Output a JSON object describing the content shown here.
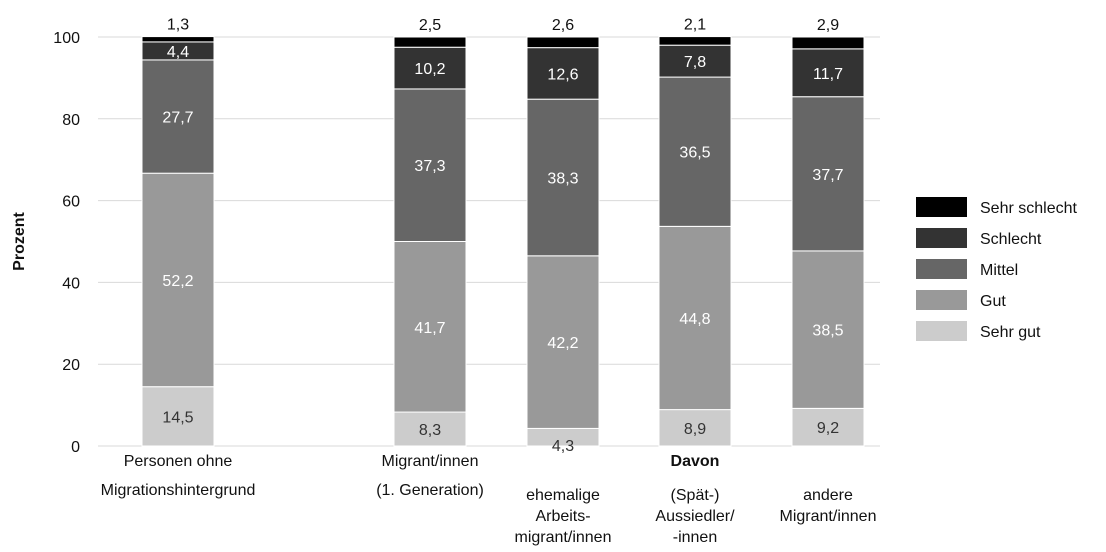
{
  "chart_data": {
    "type": "bar",
    "stacked": true,
    "ylabel": "Prozent",
    "ylim": [
      0,
      100
    ],
    "yticks": [
      0,
      20,
      40,
      60,
      80,
      100
    ],
    "grid": true,
    "legend_position": "right",
    "davon_label": "Davon",
    "categories": [
      {
        "lines": [
          "Personen ohne",
          "Migrationshintergrund"
        ]
      },
      {
        "lines": [
          "Migrant/innen",
          "(1. Generation)"
        ]
      },
      {
        "lines": [
          "ehemalige",
          "Arbeits-",
          "migrant/innen"
        ]
      },
      {
        "lines": [
          "(Spät-)",
          "Aussiedler/",
          "-innen"
        ]
      },
      {
        "lines": [
          "andere",
          "Migrant/innen"
        ]
      }
    ],
    "series": [
      {
        "name": "Sehr gut",
        "color": "#cccccc",
        "text_color": "#333333",
        "values": [
          14.5,
          8.3,
          4.3,
          8.9,
          9.2
        ],
        "labels": [
          "14,5",
          "8,3",
          "4,3",
          "8,9",
          "9,2"
        ]
      },
      {
        "name": "Gut",
        "color": "#999999",
        "text_color": "#ffffff",
        "values": [
          52.2,
          41.7,
          42.2,
          44.8,
          38.5
        ],
        "labels": [
          "52,2",
          "41,7",
          "42,2",
          "44,8",
          "38,5"
        ]
      },
      {
        "name": "Mittel",
        "color": "#666666",
        "text_color": "#ffffff",
        "values": [
          27.7,
          37.3,
          38.3,
          36.5,
          37.7
        ],
        "labels": [
          "27,7",
          "37,3",
          "38,3",
          "36,5",
          "37,7"
        ]
      },
      {
        "name": "Schlecht",
        "color": "#333333",
        "text_color": "#ffffff",
        "values": [
          4.4,
          10.2,
          12.6,
          7.8,
          11.7
        ],
        "labels": [
          "4,4",
          "10,2",
          "12,6",
          "7,8",
          "11,7"
        ]
      },
      {
        "name": "Sehr schlecht",
        "color": "#000000",
        "text_color": "#111111",
        "values": [
          1.3,
          2.5,
          2.6,
          2.1,
          2.9
        ],
        "labels": [
          "1,3",
          "2,5",
          "2,6",
          "2,1",
          "2,9"
        ]
      }
    ]
  }
}
